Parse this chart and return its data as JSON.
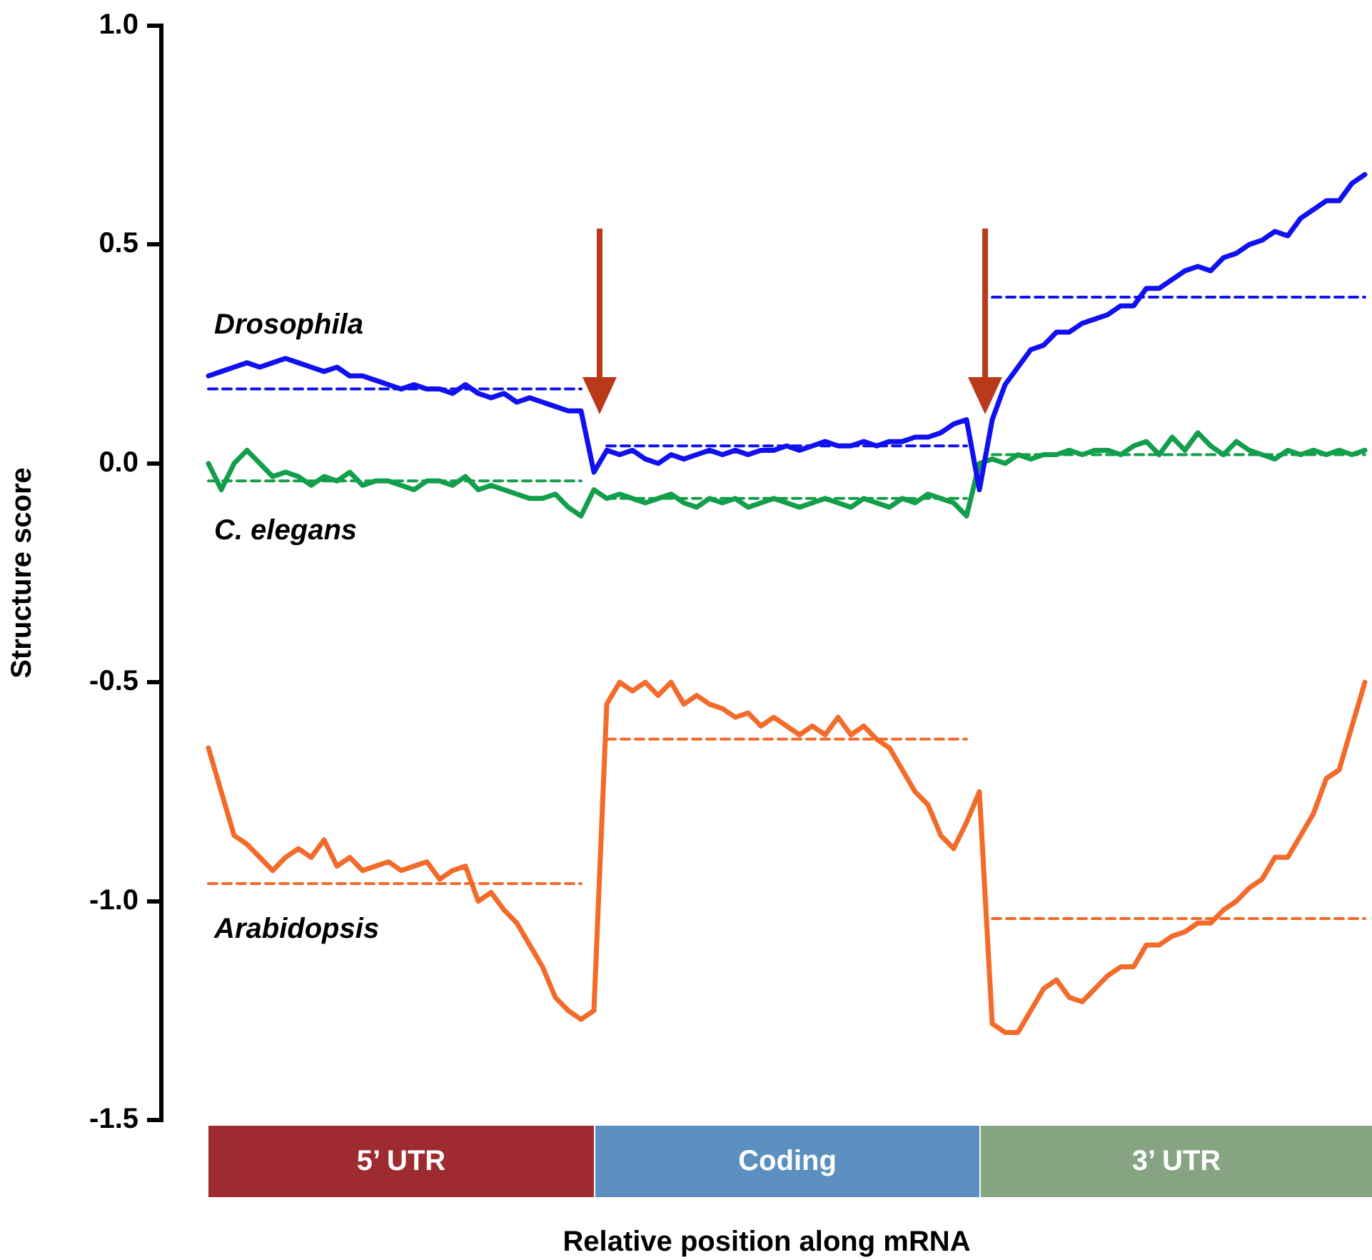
{
  "chart_data": {
    "type": "line",
    "xlabel": "Relative position along mRNA",
    "ylabel": "Structure score",
    "categories": [
      null,
      null,
      null,
      null,
      null,
      null,
      null,
      null,
      null,
      null,
      null,
      null,
      null,
      null,
      null,
      null,
      null,
      null,
      null,
      null,
      null,
      null,
      null,
      null,
      null,
      null,
      null,
      null,
      null,
      null,
      null,
      null,
      null,
      null,
      null,
      null,
      null,
      null,
      null,
      null,
      null,
      null,
      null,
      null,
      null,
      null,
      null,
      null,
      null,
      null,
      null,
      null,
      null,
      null,
      null,
      null,
      null,
      null,
      null,
      null,
      null,
      null,
      null,
      null,
      null,
      null,
      null,
      null,
      null,
      null,
      null,
      null,
      null,
      null,
      null,
      null,
      null,
      null,
      null,
      null,
      null,
      null,
      null,
      null,
      null,
      null,
      null,
      null,
      null,
      null,
      null
    ],
    "ylim": [
      -1.5,
      1.0
    ],
    "yticks": [
      {
        "value": 1.0,
        "label": "1.0"
      },
      {
        "value": 0.5,
        "label": "0.5"
      },
      {
        "value": 0.0,
        "label": "0.0"
      },
      {
        "value": -0.5,
        "label": "-0.5"
      },
      {
        "value": -1.0,
        "label": "-1.0"
      },
      {
        "value": -1.5,
        "label": "-1.5"
      }
    ],
    "grid": false,
    "legend": false,
    "marker": "none",
    "tick_labels": "y",
    "annotations": [
      "5’ UTR",
      "Coding",
      "3’ UTR"
    ],
    "series": [
      {
        "name": "Drosophila",
        "color": "#1010f0",
        "values": [
          0.2,
          0.21,
          0.22,
          0.23,
          0.22,
          0.23,
          0.24,
          0.23,
          0.22,
          0.21,
          0.22,
          0.2,
          0.2,
          0.19,
          0.18,
          0.17,
          0.18,
          0.17,
          0.17,
          0.16,
          0.18,
          0.16,
          0.15,
          0.16,
          0.14,
          0.15,
          0.14,
          0.13,
          0.12,
          0.12,
          -0.02,
          0.03,
          0.02,
          0.03,
          0.01,
          0.0,
          0.02,
          0.01,
          0.02,
          0.03,
          0.02,
          0.03,
          0.02,
          0.03,
          0.03,
          0.04,
          0.03,
          0.04,
          0.05,
          0.04,
          0.04,
          0.05,
          0.04,
          0.05,
          0.05,
          0.06,
          0.06,
          0.07,
          0.09,
          0.1,
          -0.06,
          0.1,
          0.18,
          0.22,
          0.26,
          0.27,
          0.3,
          0.3,
          0.32,
          0.33,
          0.34,
          0.36,
          0.36,
          0.4,
          0.4,
          0.42,
          0.44,
          0.45,
          0.44,
          0.47,
          0.48,
          0.5,
          0.51,
          0.53,
          0.52,
          0.56,
          0.58,
          0.6,
          0.6,
          0.64,
          0.66
        ]
      },
      {
        "name": "C. elegans",
        "color": "#139e4c",
        "values": [
          0.0,
          -0.06,
          0.0,
          0.03,
          0.0,
          -0.03,
          -0.02,
          -0.03,
          -0.05,
          -0.03,
          -0.04,
          -0.02,
          -0.05,
          -0.04,
          -0.04,
          -0.05,
          -0.06,
          -0.04,
          -0.04,
          -0.05,
          -0.03,
          -0.06,
          -0.05,
          -0.06,
          -0.07,
          -0.08,
          -0.08,
          -0.07,
          -0.1,
          -0.12,
          -0.06,
          -0.08,
          -0.07,
          -0.08,
          -0.09,
          -0.08,
          -0.07,
          -0.09,
          -0.1,
          -0.08,
          -0.09,
          -0.08,
          -0.1,
          -0.09,
          -0.08,
          -0.09,
          -0.1,
          -0.09,
          -0.08,
          -0.09,
          -0.1,
          -0.08,
          -0.09,
          -0.1,
          -0.08,
          -0.09,
          -0.07,
          -0.08,
          -0.09,
          -0.12,
          0.0,
          0.01,
          0.0,
          0.02,
          0.01,
          0.02,
          0.02,
          0.03,
          0.02,
          0.03,
          0.03,
          0.02,
          0.04,
          0.05,
          0.02,
          0.06,
          0.03,
          0.07,
          0.04,
          0.02,
          0.05,
          0.03,
          0.02,
          0.01,
          0.03,
          0.02,
          0.03,
          0.02,
          0.03,
          0.02,
          0.03
        ]
      },
      {
        "name": "Arabidopsis",
        "color": "#f26b2a",
        "values": [
          -0.65,
          -0.75,
          -0.85,
          -0.87,
          -0.9,
          -0.93,
          -0.9,
          -0.88,
          -0.9,
          -0.86,
          -0.92,
          -0.9,
          -0.93,
          -0.92,
          -0.91,
          -0.93,
          -0.92,
          -0.91,
          -0.95,
          -0.93,
          -0.92,
          -1.0,
          -0.98,
          -1.02,
          -1.05,
          -1.1,
          -1.15,
          -1.22,
          -1.25,
          -1.27,
          -1.25,
          -0.55,
          -0.5,
          -0.52,
          -0.5,
          -0.53,
          -0.5,
          -0.55,
          -0.53,
          -0.55,
          -0.56,
          -0.58,
          -0.57,
          -0.6,
          -0.58,
          -0.6,
          -0.62,
          -0.6,
          -0.62,
          -0.58,
          -0.62,
          -0.6,
          -0.63,
          -0.65,
          -0.7,
          -0.75,
          -0.78,
          -0.85,
          -0.88,
          -0.82,
          -0.75,
          -1.28,
          -1.3,
          -1.3,
          -1.25,
          -1.2,
          -1.18,
          -1.22,
          -1.23,
          -1.2,
          -1.17,
          -1.15,
          -1.15,
          -1.1,
          -1.1,
          -1.08,
          -1.07,
          -1.05,
          -1.05,
          -1.02,
          -1.0,
          -0.97,
          -0.95,
          -0.9,
          -0.9,
          -0.85,
          -0.8,
          -0.72,
          -0.7,
          -0.6,
          -0.5
        ]
      },
      {
        "type": "line",
        "line_style": "dashed",
        "color": "#1010f0",
        "values": [
          0.17,
          0.17,
          0.17,
          0.17,
          0.17,
          0.17,
          0.17,
          0.17,
          0.17,
          0.17,
          0.17,
          0.17,
          0.17,
          0.17,
          0.17,
          0.17,
          0.17,
          0.17,
          0.17,
          0.17,
          0.17,
          0.17,
          0.17,
          0.17,
          0.17,
          0.17,
          0.17,
          0.17,
          0.17,
          0.17,
          null,
          0.04,
          0.04,
          0.04,
          0.04,
          0.04,
          0.04,
          0.04,
          0.04,
          0.04,
          0.04,
          0.04,
          0.04,
          0.04,
          0.04,
          0.04,
          0.04,
          0.04,
          0.04,
          0.04,
          0.04,
          0.04,
          0.04,
          0.04,
          0.04,
          0.04,
          0.04,
          0.04,
          0.04,
          0.04,
          null,
          0.38,
          0.38,
          0.38,
          0.38,
          0.38,
          0.38,
          0.38,
          0.38,
          0.38,
          0.38,
          0.38,
          0.38,
          0.38,
          0.38,
          0.38,
          0.38,
          0.38,
          0.38,
          0.38,
          0.38,
          0.38,
          0.38,
          0.38,
          0.38,
          0.38,
          0.38,
          0.38,
          0.38,
          0.38,
          0.38
        ]
      },
      {
        "type": "line",
        "line_style": "dashed",
        "color": "#139e4c",
        "values": [
          -0.04,
          -0.04,
          -0.04,
          -0.04,
          -0.04,
          -0.04,
          -0.04,
          -0.04,
          -0.04,
          -0.04,
          -0.04,
          -0.04,
          -0.04,
          -0.04,
          -0.04,
          -0.04,
          -0.04,
          -0.04,
          -0.04,
          -0.04,
          -0.04,
          -0.04,
          -0.04,
          -0.04,
          -0.04,
          -0.04,
          -0.04,
          -0.04,
          -0.04,
          -0.04,
          null,
          -0.08,
          -0.08,
          -0.08,
          -0.08,
          -0.08,
          -0.08,
          -0.08,
          -0.08,
          -0.08,
          -0.08,
          -0.08,
          -0.08,
          -0.08,
          -0.08,
          -0.08,
          -0.08,
          -0.08,
          -0.08,
          -0.08,
          -0.08,
          -0.08,
          -0.08,
          -0.08,
          -0.08,
          -0.08,
          -0.08,
          -0.08,
          -0.08,
          -0.08,
          null,
          0.02,
          0.02,
          0.02,
          0.02,
          0.02,
          0.02,
          0.02,
          0.02,
          0.02,
          0.02,
          0.02,
          0.02,
          0.02,
          0.02,
          0.02,
          0.02,
          0.02,
          0.02,
          0.02,
          0.02,
          0.02,
          0.02,
          0.02,
          0.02,
          0.02,
          0.02,
          0.02,
          0.02,
          0.02,
          0.02
        ]
      },
      {
        "type": "line",
        "line_style": "dashed",
        "color": "#f26b2a",
        "values": [
          -0.96,
          -0.96,
          -0.96,
          -0.96,
          -0.96,
          -0.96,
          -0.96,
          -0.96,
          -0.96,
          -0.96,
          -0.96,
          -0.96,
          -0.96,
          -0.96,
          -0.96,
          -0.96,
          -0.96,
          -0.96,
          -0.96,
          -0.96,
          -0.96,
          -0.96,
          -0.96,
          -0.96,
          -0.96,
          -0.96,
          -0.96,
          -0.96,
          -0.96,
          -0.96,
          null,
          -0.63,
          -0.63,
          -0.63,
          -0.63,
          -0.63,
          -0.63,
          -0.63,
          -0.63,
          -0.63,
          -0.63,
          -0.63,
          -0.63,
          -0.63,
          -0.63,
          -0.63,
          -0.63,
          -0.63,
          -0.63,
          -0.63,
          -0.63,
          -0.63,
          -0.63,
          -0.63,
          -0.63,
          -0.63,
          -0.63,
          -0.63,
          -0.63,
          -0.63,
          null,
          -1.04,
          -1.04,
          -1.04,
          -1.04,
          -1.04,
          -1.04,
          -1.04,
          -1.04,
          -1.04,
          -1.04,
          -1.04,
          -1.04,
          -1.04,
          -1.04,
          -1.04,
          -1.04,
          -1.04,
          -1.04,
          -1.04,
          -1.04,
          -1.04,
          -1.04,
          -1.04,
          -1.04,
          -1.04,
          -1.04,
          -1.04,
          -1.04,
          -1.04,
          -1.04
        ]
      }
    ]
  }
}
